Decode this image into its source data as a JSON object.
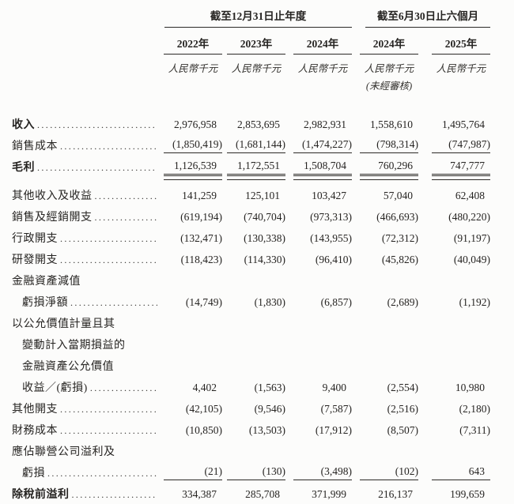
{
  "table": {
    "header": {
      "period_groups": [
        {
          "title": "截至12月31日止年度",
          "columns": 3
        },
        {
          "title": "截至6月30日止六個月",
          "columns": 2
        }
      ],
      "year_columns": [
        "2022年",
        "2023年",
        "2024年",
        "2024年",
        "2025年"
      ],
      "unit_label": "人民幣千元",
      "unaudited_note": "(未經審核)",
      "unaudited_column_index": 3
    },
    "rows": [
      {
        "id": "revenue",
        "lines": [
          "收入"
        ],
        "bold": true,
        "values": [
          "2,976,958",
          "2,853,695",
          "2,982,931",
          "1,558,610",
          "1,495,764"
        ],
        "rule": "none"
      },
      {
        "id": "cost-of-sales",
        "lines": [
          "銷售成本"
        ],
        "bold": false,
        "values": [
          "(1,850,419)",
          "(1,681,144)",
          "(1,474,227)",
          "(798,314)",
          "(747,987)"
        ],
        "rule": "single"
      },
      {
        "id": "gross-profit",
        "lines": [
          "毛利"
        ],
        "bold": true,
        "values": [
          "1,126,539",
          "1,172,551",
          "1,508,704",
          "760,296",
          "747,777"
        ],
        "rule": "double"
      },
      {
        "id": "other-income-and-gains",
        "lines": [
          "其他收入及收益"
        ],
        "bold": false,
        "values": [
          "141,259",
          "125,101",
          "103,427",
          "57,040",
          "62,408"
        ],
        "rule": "none"
      },
      {
        "id": "selling-and-distribution-expenses",
        "lines": [
          "銷售及經銷開支"
        ],
        "bold": false,
        "values": [
          "(619,194)",
          "(740,704)",
          "(973,313)",
          "(466,693)",
          "(480,220)"
        ],
        "rule": "none"
      },
      {
        "id": "administrative-expenses",
        "lines": [
          "行政開支"
        ],
        "bold": false,
        "values": [
          "(132,471)",
          "(130,338)",
          "(143,955)",
          "(72,312)",
          "(91,197)"
        ],
        "rule": "none"
      },
      {
        "id": "rd-expenses",
        "lines": [
          "研發開支"
        ],
        "bold": false,
        "values": [
          "(118,423)",
          "(114,330)",
          "(96,410)",
          "(45,826)",
          "(40,049)"
        ],
        "rule": "none"
      },
      {
        "id": "impairment-losses-financial-assets",
        "lines": [
          "金融資產減值",
          "虧損淨額"
        ],
        "bold": false,
        "values": [
          "(14,749)",
          "(1,830)",
          "(6,857)",
          "(2,689)",
          "(1,192)"
        ],
        "rule": "none"
      },
      {
        "id": "fair-value-gains-losses-fvtpl",
        "lines": [
          "以公允價值計量且其",
          "變動計入當期損益的",
          "金融資產公允價值",
          "收益／(虧損)"
        ],
        "bold": false,
        "values": [
          "4,402",
          "(1,563)",
          "9,400",
          "(2,554)",
          "10,980"
        ],
        "rule": "none"
      },
      {
        "id": "other-expenses",
        "lines": [
          "其他開支"
        ],
        "bold": false,
        "values": [
          "(42,105)",
          "(9,546)",
          "(7,587)",
          "(2,516)",
          "(2,180)"
        ],
        "rule": "none"
      },
      {
        "id": "finance-costs",
        "lines": [
          "財務成本"
        ],
        "bold": false,
        "values": [
          "(10,850)",
          "(13,503)",
          "(17,912)",
          "(8,507)",
          "(7,311)"
        ],
        "rule": "none"
      },
      {
        "id": "share-of-profits-losses-of-associates",
        "lines": [
          "應佔聯營公司溢利及",
          "虧損"
        ],
        "bold": false,
        "values": [
          "(21)",
          "(130)",
          "(3,498)",
          "(102)",
          "643"
        ],
        "rule": "single"
      },
      {
        "id": "profit-before-tax",
        "lines": [
          "除稅前溢利"
        ],
        "bold": true,
        "values": [
          "334,387",
          "285,708",
          "371,999",
          "216,137",
          "199,659"
        ],
        "rule": "none"
      }
    ]
  }
}
